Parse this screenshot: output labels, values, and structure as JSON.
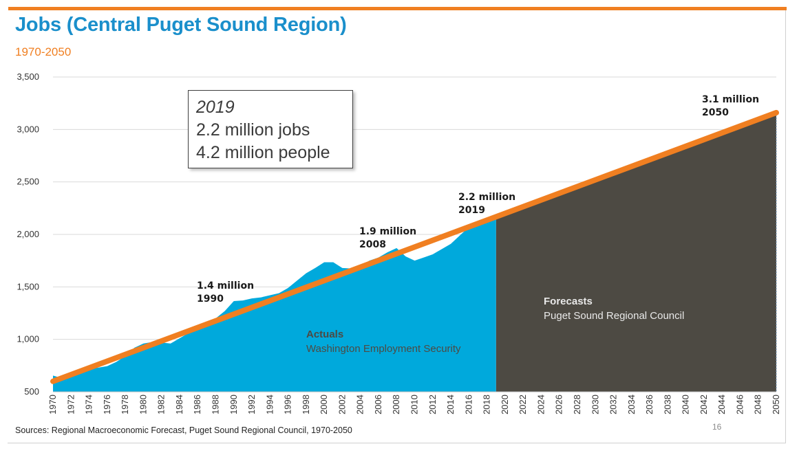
{
  "title": "Jobs (Central Puget Sound Region)",
  "subtitle": "1970-2050",
  "source": "Sources: Regional Macroeconomic Forecast, Puget Sound Regional Council, 1970-2050",
  "page_number": "16",
  "callout": {
    "year": "2019",
    "jobs": "2.2 million jobs",
    "people": "4.2 million people"
  },
  "colors": {
    "title": "#1a8fcb",
    "accent": "#f07f21",
    "actuals": "#00a9dc",
    "forecast": "#4d4a43",
    "trend": "#f07f21"
  },
  "chart_data": {
    "type": "area",
    "title": "Jobs (Central Puget Sound Region)",
    "xlabel": "",
    "ylabel": "",
    "ylim": [
      500,
      3500
    ],
    "yticks": [
      500,
      1000,
      1500,
      2000,
      2500,
      3000,
      3500
    ],
    "ytick_labels": [
      "500",
      "1,000",
      "1,500",
      "2,000",
      "2,500",
      "3,000",
      "3,500"
    ],
    "xlim": [
      1970,
      2050
    ],
    "xticks": [
      1970,
      1972,
      1974,
      1976,
      1978,
      1980,
      1982,
      1984,
      1986,
      1988,
      1990,
      1992,
      1994,
      1996,
      1998,
      2000,
      2002,
      2004,
      2006,
      2008,
      2010,
      2012,
      2014,
      2016,
      2018,
      2020,
      2022,
      2024,
      2026,
      2028,
      2030,
      2032,
      2034,
      2036,
      2038,
      2040,
      2042,
      2044,
      2046,
      2048,
      2050
    ],
    "grid": true,
    "series": [
      {
        "name": "Actuals",
        "source": "Washington Employment Security",
        "x": [
          1970,
          1971,
          1972,
          1973,
          1974,
          1975,
          1976,
          1977,
          1978,
          1979,
          1980,
          1981,
          1982,
          1983,
          1984,
          1985,
          1986,
          1987,
          1988,
          1989,
          1990,
          1991,
          1992,
          1993,
          1994,
          1995,
          1996,
          1997,
          1998,
          1999,
          2000,
          2001,
          2002,
          2003,
          2004,
          2005,
          2006,
          2007,
          2008,
          2009,
          2010,
          2011,
          2012,
          2013,
          2014,
          2015,
          2016,
          2017,
          2018,
          2019
        ],
        "values": [
          655,
          630,
          670,
          700,
          720,
          730,
          745,
          785,
          840,
          920,
          960,
          975,
          970,
          960,
          1010,
          1060,
          1100,
          1150,
          1200,
          1270,
          1365,
          1370,
          1390,
          1400,
          1420,
          1440,
          1490,
          1560,
          1630,
          1680,
          1735,
          1735,
          1680,
          1675,
          1700,
          1750,
          1780,
          1830,
          1870,
          1790,
          1750,
          1780,
          1810,
          1860,
          1910,
          1990,
          2070,
          2120,
          2150,
          2180
        ]
      },
      {
        "name": "Forecasts",
        "source": "Puget Sound Regional Council",
        "x": [
          2019,
          2050
        ],
        "values": [
          2180,
          3140
        ]
      },
      {
        "name": "Trend",
        "x": [
          1970,
          2050
        ],
        "values": [
          600,
          3160
        ]
      }
    ],
    "annotations": [
      {
        "value_label": "1.4 million",
        "year_label": "1990",
        "x": 1990,
        "y": 1370
      },
      {
        "value_label": "1.9 million",
        "year_label": "2008",
        "x": 2008,
        "y": 1870
      },
      {
        "value_label": "2.2 million",
        "year_label": "2019",
        "x": 2019,
        "y": 2180
      },
      {
        "value_label": "3.1 million",
        "year_label": "2050",
        "x": 2050,
        "y": 3140
      }
    ],
    "region_labels": [
      {
        "title": "Actuals",
        "subtitle": "Washington Employment Security"
      },
      {
        "title": "Forecasts",
        "subtitle": "Puget Sound Regional Council"
      }
    ]
  }
}
